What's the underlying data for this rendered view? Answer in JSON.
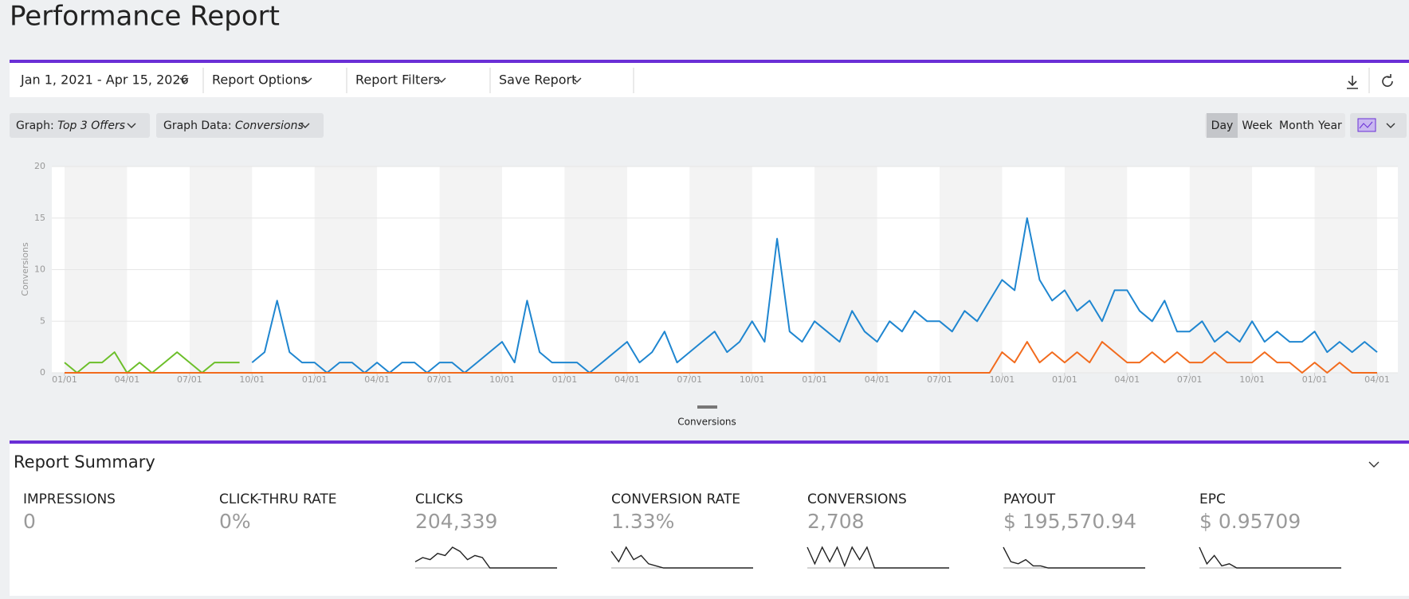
{
  "header": {
    "title": "Performance Report"
  },
  "toolbar": {
    "date_range": "Jan 1, 2021 - Apr 15, 2026",
    "menus": [
      "Report Options",
      "Report Filters",
      "Save Report"
    ]
  },
  "controls": {
    "graph": {
      "label": "Graph:",
      "value": "Top 3 Offers"
    },
    "graph_data": {
      "label": "Graph Data:",
      "value": "Conversions"
    },
    "intervals": [
      "Day",
      "Week",
      "Month",
      "Year"
    ],
    "active_interval": 0
  },
  "chart_data": {
    "type": "line",
    "y_label": "Conversions",
    "ylim": [
      0,
      20
    ],
    "yticks": [
      0,
      5,
      10,
      15,
      20
    ],
    "grid": true,
    "x_labels": [
      "01/01",
      "04/01",
      "07/01",
      "10/01",
      "01/01",
      "04/01",
      "07/01",
      "10/01",
      "01/01",
      "04/01",
      "07/01",
      "10/01",
      "01/01",
      "04/01",
      "07/01",
      "10/01",
      "01/01",
      "04/01",
      "07/01",
      "10/01",
      "01/01",
      "04/01"
    ],
    "series": [
      {
        "color": "#6cbf2a",
        "values": [
          1,
          0,
          1,
          1,
          2,
          0,
          1,
          0,
          1,
          2,
          1,
          0,
          1,
          1,
          1,
          null,
          null,
          null,
          null,
          null,
          null,
          null,
          null,
          null,
          null,
          null,
          null,
          null,
          null,
          null,
          null,
          null,
          null,
          null,
          null,
          null,
          null,
          null,
          null,
          null,
          null,
          null,
          null,
          null,
          null,
          null,
          null,
          null,
          null,
          null,
          null,
          null,
          null,
          null,
          null,
          null,
          null,
          null,
          null,
          null,
          null,
          null,
          null,
          null,
          null,
          null,
          null,
          null,
          null,
          null,
          null,
          null,
          null,
          null,
          null,
          null,
          null,
          null,
          null,
          null,
          null,
          null,
          null,
          null,
          null,
          null,
          null,
          null,
          null,
          null,
          null,
          null,
          null,
          null,
          null,
          null,
          null,
          null,
          null,
          null,
          null,
          null,
          null,
          null,
          null,
          null
        ]
      },
      {
        "color": "#1f86d0",
        "values": [
          null,
          null,
          null,
          null,
          null,
          null,
          null,
          null,
          null,
          null,
          null,
          null,
          null,
          null,
          null,
          1,
          2,
          7,
          2,
          1,
          1,
          0,
          1,
          1,
          0,
          1,
          0,
          1,
          1,
          0,
          1,
          1,
          0,
          1,
          2,
          3,
          1,
          7,
          2,
          1,
          1,
          1,
          0,
          1,
          2,
          3,
          1,
          2,
          4,
          1,
          2,
          3,
          4,
          2,
          3,
          5,
          3,
          13,
          4,
          3,
          5,
          4,
          3,
          6,
          4,
          3,
          5,
          4,
          6,
          5,
          5,
          4,
          6,
          5,
          7,
          9,
          8,
          15,
          9,
          7,
          8,
          6,
          7,
          5,
          8,
          8,
          6,
          5,
          7,
          4,
          4,
          5,
          3,
          4,
          3,
          5,
          3,
          4,
          3,
          3,
          4,
          2,
          3,
          2,
          3,
          2
        ]
      },
      {
        "color": "#f26b1d",
        "values": [
          0,
          0,
          0,
          0,
          0,
          0,
          0,
          0,
          0,
          0,
          0,
          0,
          0,
          0,
          0,
          0,
          0,
          0,
          0,
          0,
          0,
          0,
          0,
          0,
          0,
          0,
          0,
          0,
          0,
          0,
          0,
          0,
          0,
          0,
          0,
          0,
          0,
          0,
          0,
          0,
          0,
          0,
          0,
          0,
          0,
          0,
          0,
          0,
          0,
          0,
          0,
          0,
          0,
          0,
          0,
          0,
          0,
          0,
          0,
          0,
          0,
          0,
          0,
          0,
          0,
          0,
          0,
          0,
          0,
          0,
          0,
          0,
          0,
          0,
          0,
          2,
          1,
          3,
          1,
          2,
          1,
          2,
          1,
          3,
          2,
          1,
          1,
          2,
          1,
          2,
          1,
          1,
          2,
          1,
          1,
          1,
          2,
          1,
          1,
          0,
          1,
          0,
          1,
          0,
          0,
          0
        ]
      }
    ],
    "legend": {
      "label": "Conversions",
      "color": "#777777"
    }
  },
  "summary": {
    "title": "Report Summary",
    "metrics": [
      {
        "label": "IMPRESSIONS",
        "value": "0"
      },
      {
        "label": "CLICK-THRU RATE",
        "value": "0%"
      },
      {
        "label": "CLICKS",
        "value": "204,339",
        "sparkline": [
          3,
          5,
          4,
          7,
          6,
          10,
          8,
          4,
          6,
          5,
          0,
          0,
          0,
          0,
          0,
          0,
          0,
          0,
          0,
          0
        ]
      },
      {
        "label": "CONVERSION RATE",
        "value": "1.33%",
        "sparkline": [
          8,
          3,
          10,
          4,
          6,
          2,
          1,
          0,
          0,
          0,
          0,
          0,
          0,
          0,
          0,
          0,
          0,
          0,
          0,
          0
        ]
      },
      {
        "label": "CONVERSIONS",
        "value": "2,708",
        "sparkline": [
          10,
          2,
          10,
          3,
          10,
          1,
          10,
          4,
          10,
          0,
          0,
          0,
          0,
          0,
          0,
          0,
          0,
          0,
          0,
          0
        ]
      },
      {
        "label": "PAYOUT",
        "value": "$ 195,570.94",
        "sparkline": [
          10,
          3,
          2,
          4,
          1,
          1,
          0,
          0,
          0,
          0,
          0,
          0,
          0,
          0,
          0,
          0,
          0,
          0,
          0,
          0
        ]
      },
      {
        "label": "EPC",
        "value": "$ 0.95709",
        "sparkline": [
          10,
          2,
          6,
          1,
          2,
          0,
          0,
          0,
          0,
          0,
          0,
          0,
          0,
          0,
          0,
          0,
          0,
          0,
          0,
          0
        ]
      }
    ]
  }
}
